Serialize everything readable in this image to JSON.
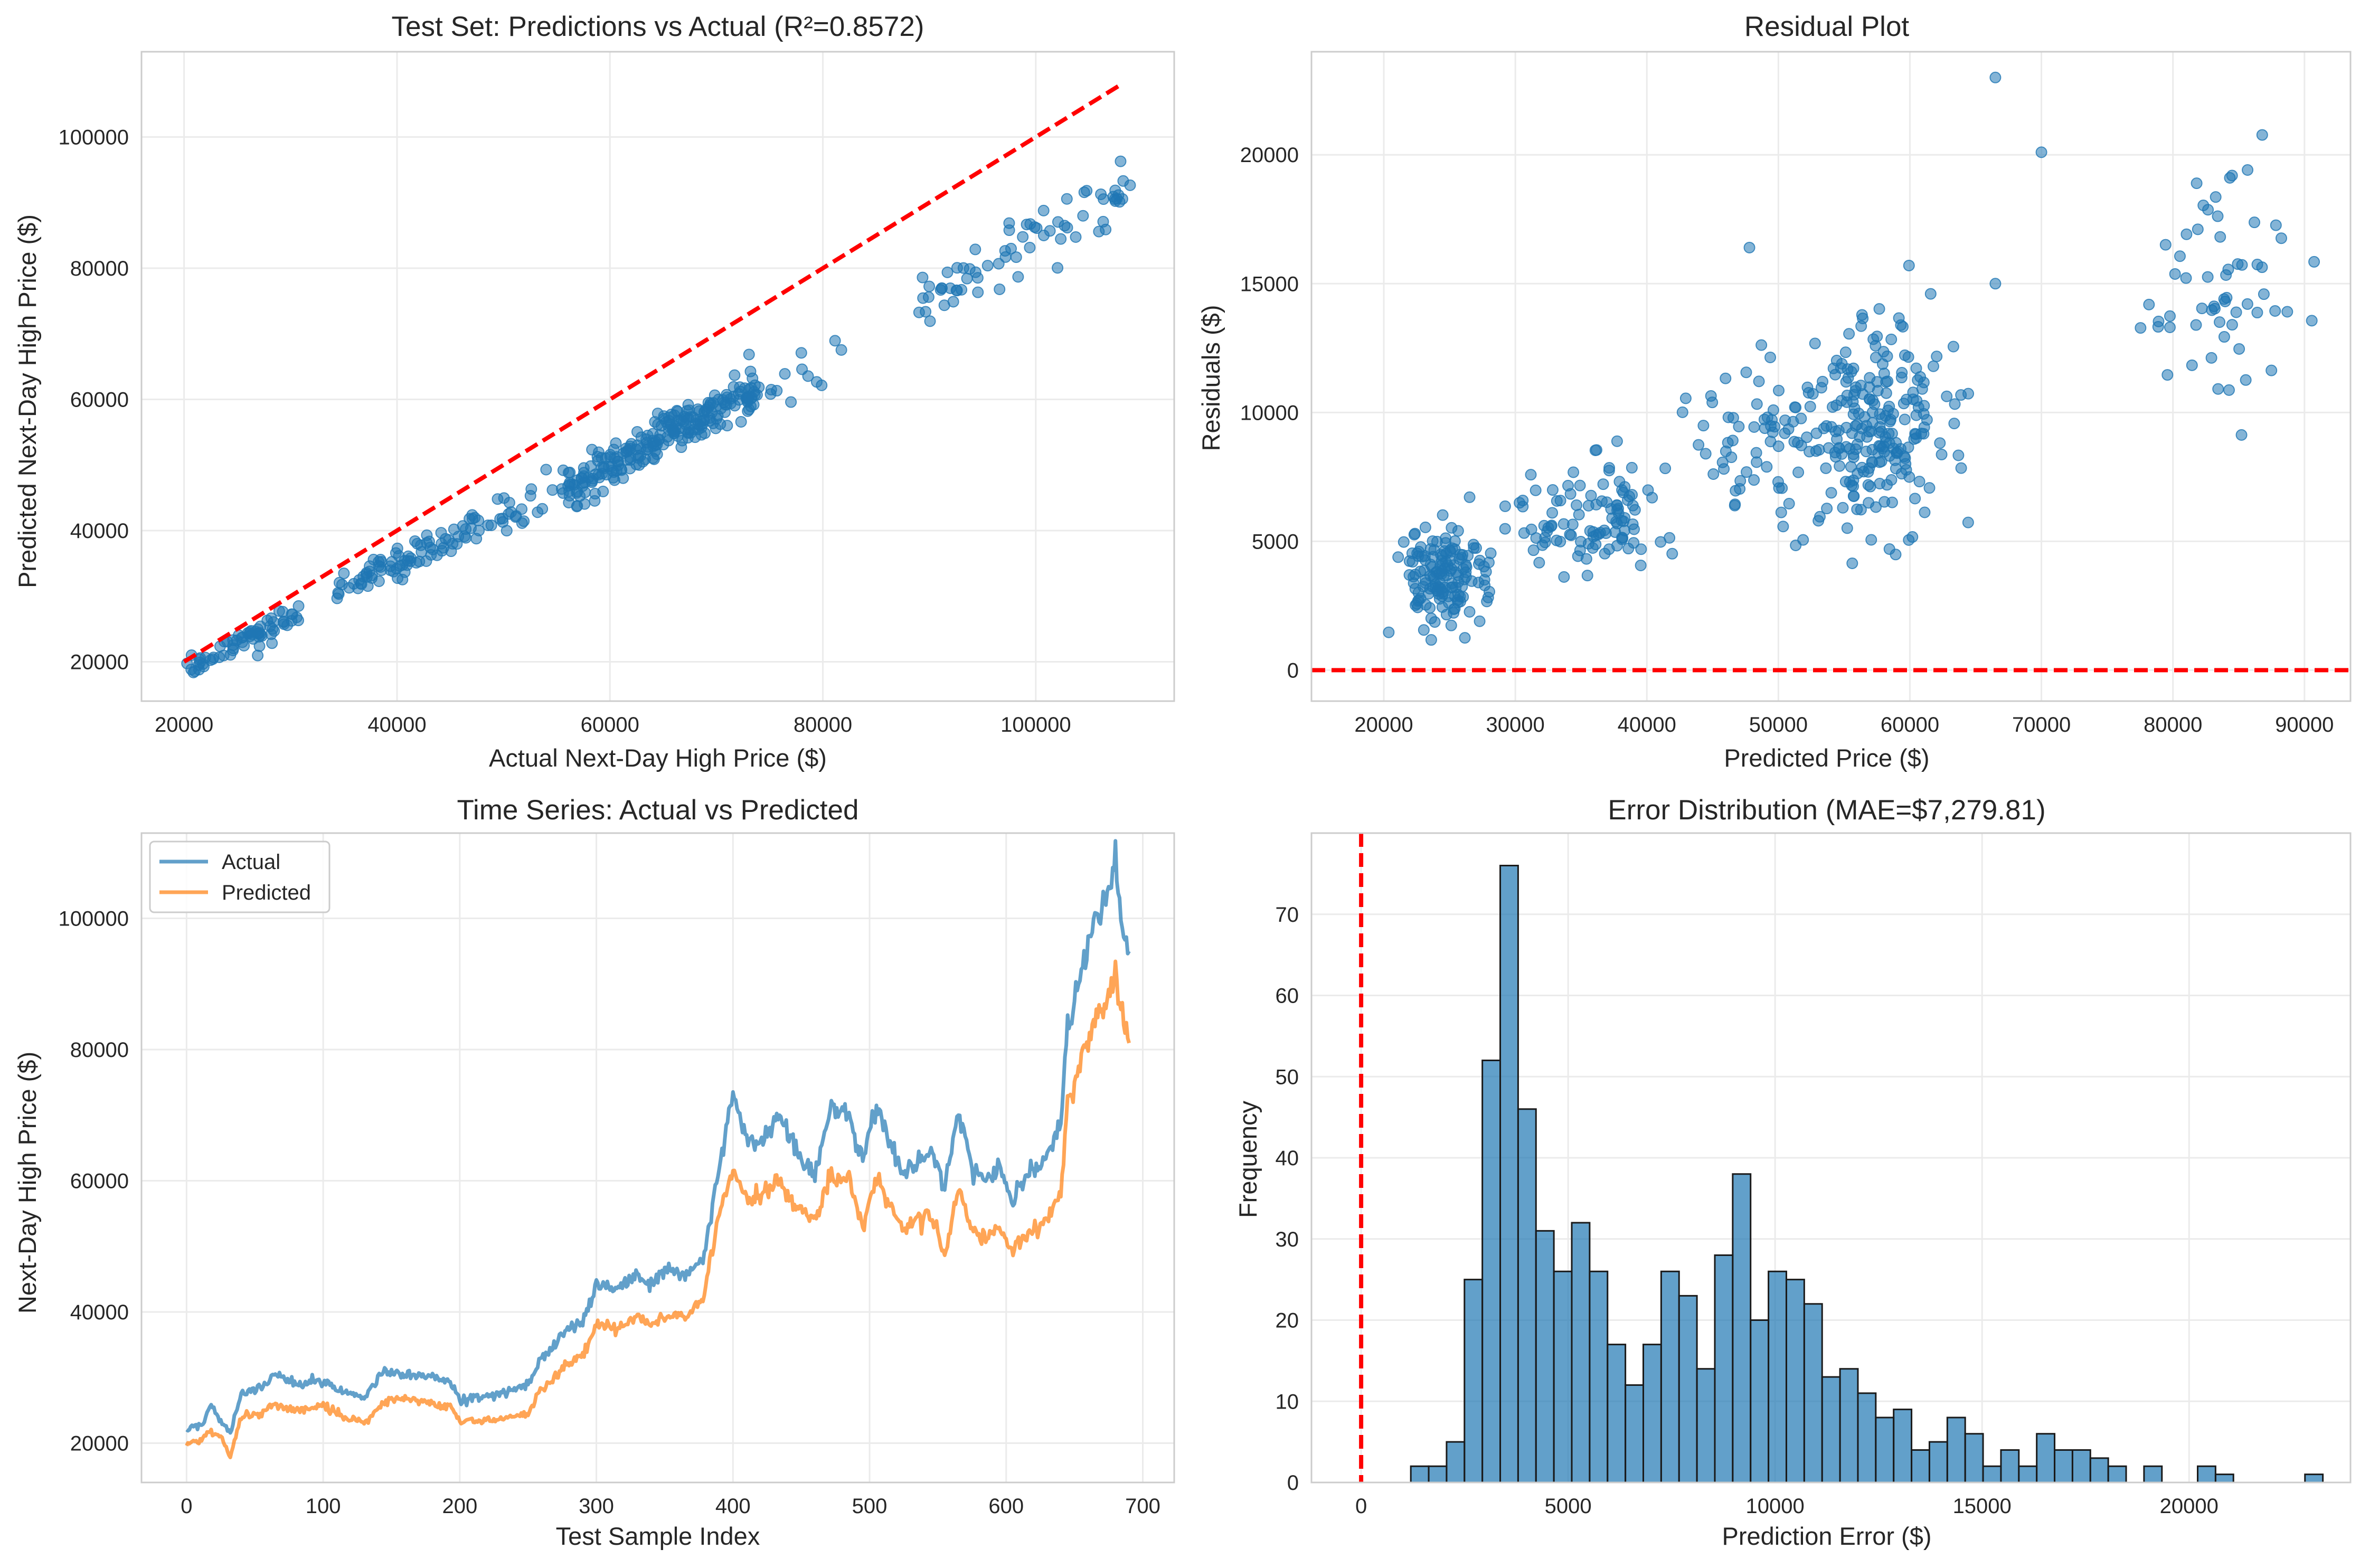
{
  "figure": {
    "background": "#ffffff"
  },
  "colors": {
    "blue": "#1f77b4",
    "orange": "#ff7f0e",
    "red_dashed": "#ff0000",
    "grid": "#ebebeb",
    "axes_edge": "#cccccc",
    "hist_edge": "#1a1a1a"
  },
  "chart_data": [
    {
      "id": "scatter",
      "type": "scatter",
      "title": "Test Set: Predictions vs Actual (R²=0.8572)",
      "xlabel": "Actual Next-Day High Price ($)",
      "ylabel": "Predicted Next-Day High Price ($)",
      "xlim": [
        16000,
        113000
      ],
      "ylim": [
        14000,
        113000
      ],
      "xticks": [
        20000,
        40000,
        60000,
        80000,
        100000
      ],
      "yticks": [
        20000,
        40000,
        60000,
        80000,
        100000
      ],
      "grid": true,
      "reference_line": {
        "x": [
          20000,
          108000
        ],
        "y": [
          20000,
          108000
        ],
        "style": "dashed"
      },
      "clusters": [
        {
          "n": 70,
          "x": [
            20000,
            31000
          ],
          "slope": 0.86,
          "intercept": 1200,
          "noise": 900
        },
        {
          "n": 35,
          "x": [
            34000,
            40000
          ],
          "slope": 0.87,
          "intercept": 600,
          "noise": 900
        },
        {
          "n": 50,
          "x": [
            40000,
            48000
          ],
          "slope": 0.87,
          "intercept": -500,
          "noise": 1200
        },
        {
          "n": 25,
          "x": [
            48000,
            56000
          ],
          "slope": 0.86,
          "intercept": -1500,
          "noise": 1500
        },
        {
          "n": 130,
          "x": [
            56000,
            66000
          ],
          "slope": 0.87,
          "intercept": -2200,
          "noise": 1700
        },
        {
          "n": 110,
          "x": [
            66000,
            74000
          ],
          "slope": 0.87,
          "intercept": -2600,
          "noise": 1700
        },
        {
          "n": 12,
          "x": [
            74000,
            82000
          ],
          "slope": 0.86,
          "intercept": -3500,
          "noise": 2800
        },
        {
          "n": 70,
          "x": [
            89000,
            109000
          ],
          "slope": 0.84,
          "intercept": 0,
          "noise": 2500
        }
      ]
    },
    {
      "id": "residual",
      "type": "scatter",
      "title": "Residual Plot",
      "xlabel": "Predicted Price ($)",
      "ylabel": "Residuals ($)",
      "xlim": [
        14500,
        93500
      ],
      "ylim": [
        -1200,
        24000
      ],
      "xticks": [
        20000,
        30000,
        40000,
        50000,
        60000,
        70000,
        80000,
        90000
      ],
      "yticks": [
        0,
        5000,
        10000,
        15000,
        20000
      ],
      "grid": true,
      "zero_line": {
        "y": 0,
        "style": "dashed"
      },
      "clusters": [
        {
          "n": 150,
          "cx": 24500,
          "cy": 3600,
          "sx": 1600,
          "sy": 950
        },
        {
          "n": 50,
          "cx": 33000,
          "cy": 5300,
          "sx": 2200,
          "sy": 1100
        },
        {
          "n": 55,
          "cx": 37500,
          "cy": 6300,
          "sx": 1300,
          "sy": 1100
        },
        {
          "n": 60,
          "cx": 48000,
          "cy": 8600,
          "sx": 2300,
          "sy": 1800
        },
        {
          "n": 230,
          "cx": 57000,
          "cy": 9400,
          "sx": 2600,
          "sy": 1900
        },
        {
          "n": 60,
          "cx": 84000,
          "cy": 14800,
          "sx": 3200,
          "sy": 2000
        }
      ],
      "outliers": [
        [
          66500,
          23000
        ],
        [
          70000,
          20100
        ],
        [
          66500,
          15000
        ],
        [
          47800,
          16400
        ]
      ]
    },
    {
      "id": "timeseries",
      "type": "line",
      "title": "Time Series: Actual vs Predicted",
      "xlabel": "Test Sample Index",
      "ylabel": "Next-Day High Price ($)",
      "xlim": [
        -33,
        723
      ],
      "ylim": [
        14000,
        113000
      ],
      "xticks": [
        0,
        100,
        200,
        300,
        400,
        500,
        600,
        700
      ],
      "yticks": [
        20000,
        40000,
        60000,
        80000,
        100000
      ],
      "grid": true,
      "legend": {
        "location": "top-left"
      },
      "series": [
        {
          "name": "Actual",
          "color": "#1f77b4",
          "anchors": [
            [
              0,
              22000
            ],
            [
              10,
              22800
            ],
            [
              18,
              25500
            ],
            [
              25,
              23500
            ],
            [
              32,
              21500
            ],
            [
              40,
              27500
            ],
            [
              55,
              28500
            ],
            [
              65,
              30500
            ],
            [
              80,
              29000
            ],
            [
              100,
              29500
            ],
            [
              115,
              28000
            ],
            [
              130,
              27000
            ],
            [
              145,
              31000
            ],
            [
              160,
              30500
            ],
            [
              180,
              30000
            ],
            [
              195,
              29000
            ],
            [
              200,
              26500
            ],
            [
              215,
              27000
            ],
            [
              230,
              27500
            ],
            [
              250,
              29000
            ],
            [
              258,
              32500
            ],
            [
              265,
              33500
            ],
            [
              275,
              37000
            ],
            [
              290,
              38500
            ],
            [
              300,
              44500
            ],
            [
              315,
              43500
            ],
            [
              330,
              46000
            ],
            [
              340,
              44000
            ],
            [
              350,
              46500
            ],
            [
              365,
              45500
            ],
            [
              378,
              48000
            ],
            [
              390,
              62000
            ],
            [
              400,
              73000
            ],
            [
              410,
              67000
            ],
            [
              420,
              66000
            ],
            [
              435,
              70000
            ],
            [
              445,
              65000
            ],
            [
              460,
              61000
            ],
            [
              472,
              72000
            ],
            [
              485,
              70000
            ],
            [
              495,
              63000
            ],
            [
              505,
              72000
            ],
            [
              515,
              66000
            ],
            [
              525,
              61000
            ],
            [
              535,
              63000
            ],
            [
              545,
              65000
            ],
            [
              555,
              59000
            ],
            [
              565,
              70000
            ],
            [
              575,
              62000
            ],
            [
              585,
              60000
            ],
            [
              595,
              62000
            ],
            [
              605,
              57000
            ],
            [
              615,
              61000
            ],
            [
              625,
              62000
            ],
            [
              635,
              66000
            ],
            [
              640,
              69000
            ],
            [
              645,
              84000
            ],
            [
              655,
              92000
            ],
            [
              665,
              100000
            ],
            [
              675,
              105000
            ],
            [
              680,
              108000
            ],
            [
              685,
              99000
            ],
            [
              690,
              95000
            ]
          ]
        },
        {
          "name": "Predicted",
          "color": "#ff7f0e",
          "anchors": [
            [
              0,
              19800
            ],
            [
              10,
              20500
            ],
            [
              18,
              21800
            ],
            [
              25,
              21000
            ],
            [
              32,
              18000
            ],
            [
              40,
              24000
            ],
            [
              55,
              24500
            ],
            [
              65,
              26000
            ],
            [
              80,
              25000
            ],
            [
              100,
              25500
            ],
            [
              115,
              24000
            ],
            [
              130,
              23000
            ],
            [
              145,
              26500
            ],
            [
              160,
              26800
            ],
            [
              180,
              26000
            ],
            [
              195,
              25500
            ],
            [
              200,
              23000
            ],
            [
              215,
              23500
            ],
            [
              230,
              23500
            ],
            [
              250,
              24500
            ],
            [
              258,
              28000
            ],
            [
              265,
              29000
            ],
            [
              275,
              31500
            ],
            [
              290,
              33500
            ],
            [
              300,
              38000
            ],
            [
              315,
              37500
            ],
            [
              330,
              39500
            ],
            [
              340,
              38000
            ],
            [
              350,
              39500
            ],
            [
              365,
              39000
            ],
            [
              378,
              42000
            ],
            [
              390,
              55000
            ],
            [
              400,
              62000
            ],
            [
              410,
              57000
            ],
            [
              420,
              57500
            ],
            [
              435,
              60000
            ],
            [
              445,
              56000
            ],
            [
              460,
              54000
            ],
            [
              472,
              61000
            ],
            [
              485,
              60000
            ],
            [
              495,
              53000
            ],
            [
              505,
              61000
            ],
            [
              515,
              56000
            ],
            [
              525,
              52000
            ],
            [
              535,
              54000
            ],
            [
              545,
              55000
            ],
            [
              555,
              48000
            ],
            [
              565,
              59000
            ],
            [
              575,
              53000
            ],
            [
              585,
              51000
            ],
            [
              595,
              53000
            ],
            [
              605,
              49000
            ],
            [
              615,
              52000
            ],
            [
              625,
              53000
            ],
            [
              635,
              56000
            ],
            [
              640,
              58000
            ],
            [
              645,
              72000
            ],
            [
              655,
              79000
            ],
            [
              665,
              84000
            ],
            [
              675,
              88000
            ],
            [
              680,
              92000
            ],
            [
              685,
              85000
            ],
            [
              690,
              81000
            ]
          ]
        }
      ]
    },
    {
      "id": "histogram",
      "type": "bar",
      "title": "Error Distribution (MAE=$7,279.81)",
      "xlabel": "Prediction Error ($)",
      "ylabel": "Frequency",
      "xlim": [
        -1200,
        23900
      ],
      "ylim": [
        0,
        80
      ],
      "xticks": [
        0,
        5000,
        10000,
        15000,
        20000
      ],
      "yticks": [
        0,
        10,
        20,
        30,
        40,
        50,
        60,
        70
      ],
      "grid": true,
      "zero_line": {
        "x": 0,
        "style": "dashed"
      },
      "bin_start": 1200,
      "bin_width": 432,
      "values": [
        2,
        2,
        5,
        25,
        52,
        76,
        46,
        31,
        26,
        32,
        26,
        17,
        12,
        17,
        26,
        23,
        14,
        28,
        38,
        20,
        26,
        25,
        22,
        13,
        14,
        11,
        8,
        9,
        4,
        5,
        8,
        6,
        2,
        4,
        2,
        6,
        4,
        4,
        3,
        2,
        0,
        2,
        0,
        0,
        2,
        1,
        0,
        0,
        0,
        0,
        1
      ]
    }
  ]
}
